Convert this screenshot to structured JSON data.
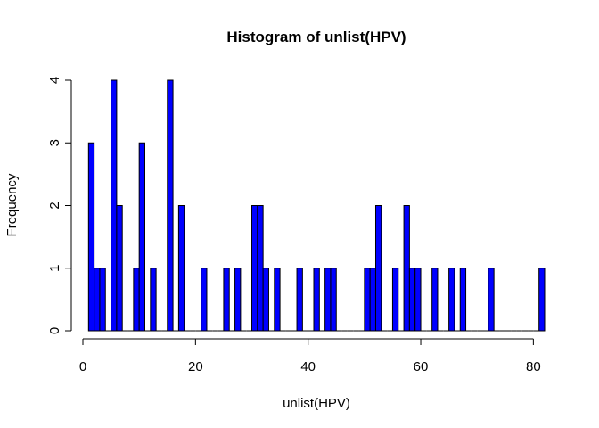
{
  "chart_data": {
    "type": "bar",
    "subtype": "histogram",
    "title": "Histogram of unlist(HPV)",
    "xlabel": "unlist(HPV)",
    "ylabel": "Frequency",
    "bin_width": 1,
    "xlim": [
      0,
      82
    ],
    "ylim": [
      0,
      4
    ],
    "x_ticks": [
      0,
      20,
      40,
      60,
      80
    ],
    "x_tick_labels": [
      "0",
      "20",
      "40",
      "60",
      "80"
    ],
    "y_ticks": [
      0,
      1,
      2,
      3,
      4
    ],
    "y_tick_labels": [
      "0",
      "1",
      "2",
      "3",
      "4"
    ],
    "grid": false,
    "legend": "none",
    "bar_color": "#0000ff",
    "bar_edge_color": "#000000",
    "bins": [
      {
        "x0": 1,
        "x1": 2,
        "count": 3
      },
      {
        "x0": 2,
        "x1": 3,
        "count": 1
      },
      {
        "x0": 3,
        "x1": 4,
        "count": 1
      },
      {
        "x0": 5,
        "x1": 6,
        "count": 4
      },
      {
        "x0": 6,
        "x1": 7,
        "count": 2
      },
      {
        "x0": 9,
        "x1": 10,
        "count": 1
      },
      {
        "x0": 10,
        "x1": 11,
        "count": 3
      },
      {
        "x0": 12,
        "x1": 13,
        "count": 1
      },
      {
        "x0": 15,
        "x1": 16,
        "count": 4
      },
      {
        "x0": 17,
        "x1": 18,
        "count": 2
      },
      {
        "x0": 21,
        "x1": 22,
        "count": 1
      },
      {
        "x0": 25,
        "x1": 26,
        "count": 1
      },
      {
        "x0": 27,
        "x1": 28,
        "count": 1
      },
      {
        "x0": 30,
        "x1": 31,
        "count": 2
      },
      {
        "x0": 31,
        "x1": 32,
        "count": 2
      },
      {
        "x0": 32,
        "x1": 33,
        "count": 1
      },
      {
        "x0": 34,
        "x1": 35,
        "count": 1
      },
      {
        "x0": 38,
        "x1": 39,
        "count": 1
      },
      {
        "x0": 41,
        "x1": 42,
        "count": 1
      },
      {
        "x0": 43,
        "x1": 44,
        "count": 1
      },
      {
        "x0": 44,
        "x1": 45,
        "count": 1
      },
      {
        "x0": 50,
        "x1": 51,
        "count": 1
      },
      {
        "x0": 51,
        "x1": 52,
        "count": 1
      },
      {
        "x0": 52,
        "x1": 53,
        "count": 2
      },
      {
        "x0": 55,
        "x1": 56,
        "count": 1
      },
      {
        "x0": 57,
        "x1": 58,
        "count": 2
      },
      {
        "x0": 58,
        "x1": 59,
        "count": 1
      },
      {
        "x0": 59,
        "x1": 60,
        "count": 1
      },
      {
        "x0": 62,
        "x1": 63,
        "count": 1
      },
      {
        "x0": 65,
        "x1": 66,
        "count": 1
      },
      {
        "x0": 67,
        "x1": 68,
        "count": 1
      },
      {
        "x0": 72,
        "x1": 73,
        "count": 1
      },
      {
        "x0": 81,
        "x1": 82,
        "count": 1
      }
    ]
  }
}
